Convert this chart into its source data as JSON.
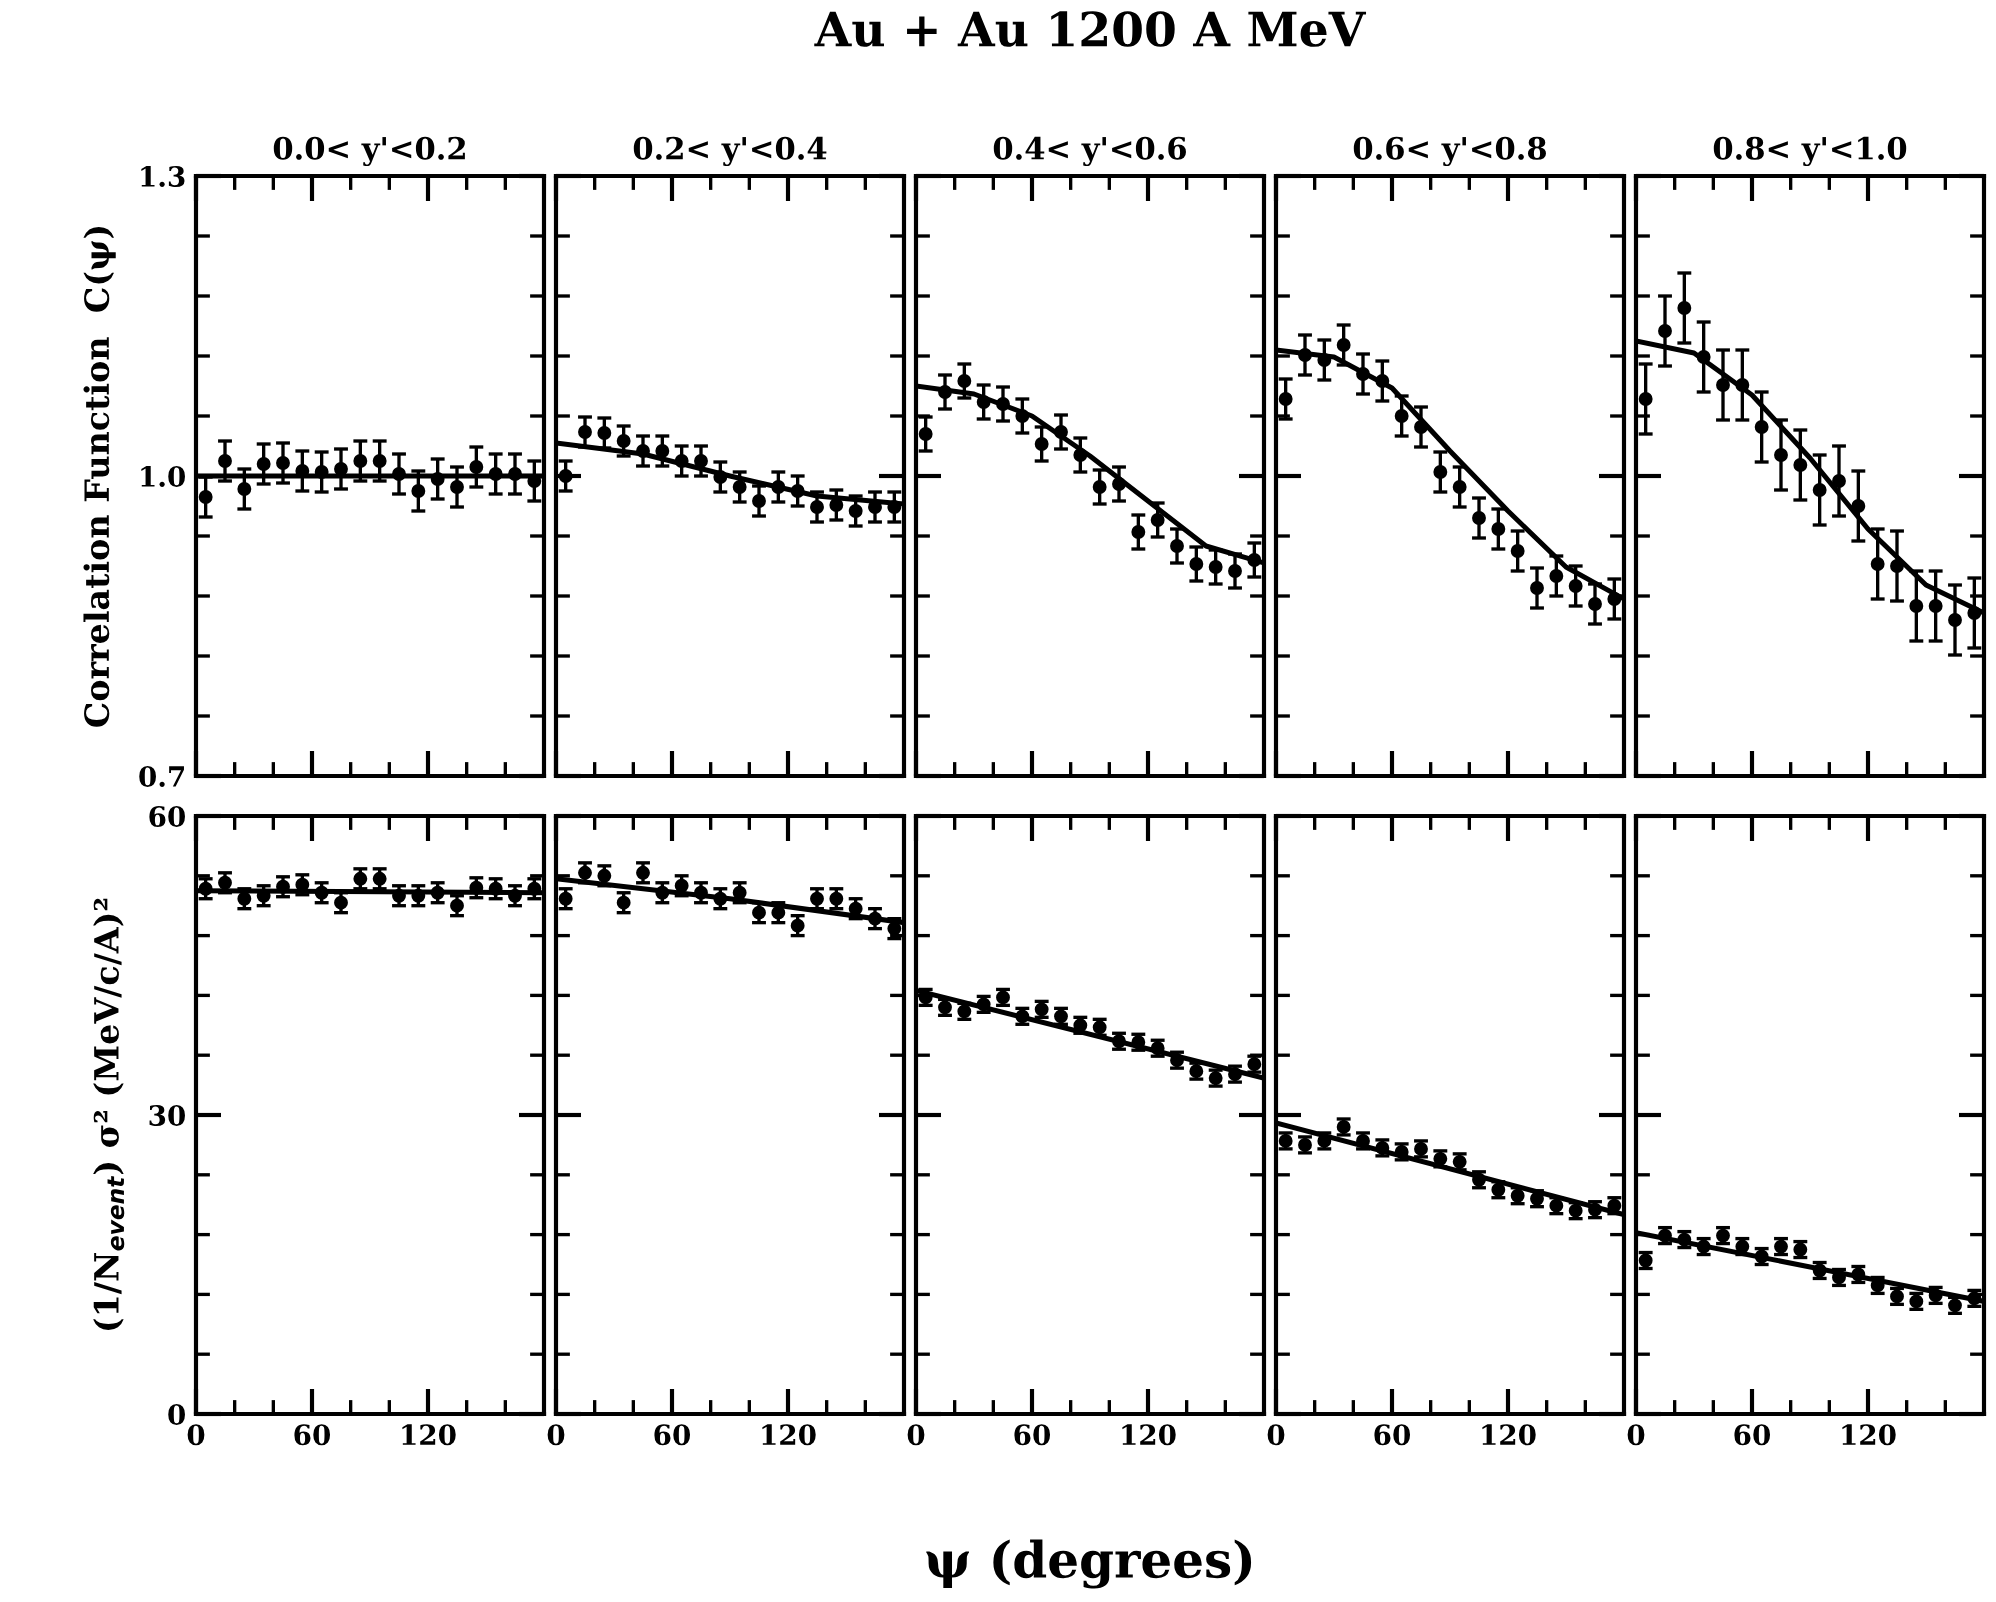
{
  "chart_data": [
    {
      "type": "scatter",
      "subtitle": "0.0< y'<0.2",
      "ylabel": "Correlation Function  C(ψ)",
      "marker": "circle",
      "tick_labels": "y",
      "x": [
        5,
        15,
        25,
        35,
        45,
        55,
        65,
        75,
        85,
        95,
        105,
        115,
        125,
        135,
        145,
        155,
        165,
        175
      ],
      "xlim": [
        0,
        180
      ],
      "xticks": [
        0,
        {
          "value": 20,
          "label": null
        },
        {
          "value": 40,
          "label": null
        },
        60,
        {
          "value": 80,
          "label": null
        },
        {
          "value": 100,
          "label": null
        },
        120,
        {
          "value": 140,
          "label": null
        },
        {
          "value": 160,
          "label": null
        },
        {
          "value": 180,
          "label": null
        }
      ],
      "ylim": [
        0.7,
        1.3
      ],
      "yticks": [
        0.7,
        {
          "value": 0.76,
          "label": null
        },
        {
          "value": 0.82,
          "label": null
        },
        {
          "value": 0.88,
          "label": null
        },
        {
          "value": 0.94,
          "label": null
        },
        {
          "value": 1.0,
          "label": "1.0"
        },
        {
          "value": 1.06,
          "label": null
        },
        {
          "value": 1.12,
          "label": null
        },
        {
          "value": 1.18,
          "label": null
        },
        {
          "value": 1.24,
          "label": null
        },
        1.3
      ],
      "series": [
        {
          "color": "#000000",
          "values": [
            0.979,
            1.015,
            0.987,
            1.012,
            1.013,
            1.005,
            1.004,
            1.007,
            1.015,
            1.015,
            1.002,
            0.985,
            0.997,
            0.989,
            1.009,
            1.002,
            1.002,
            0.995
          ],
          "errors": [
            0.02,
            0.02,
            0.02,
            0.02,
            0.02,
            0.02,
            0.02,
            0.02,
            0.02,
            0.02,
            0.02,
            0.02,
            0.02,
            0.02,
            0.02,
            0.02,
            0.02,
            0.02
          ]
        },
        {
          "type": "line",
          "color": "#000000",
          "x": [
            0,
            90,
            180
          ],
          "marker": "none",
          "values": [
            1.0,
            1.0,
            1.0
          ]
        }
      ]
    },
    {
      "type": "scatter",
      "subtitle": "0.2< y'<0.4",
      "marker": "circle",
      "tick_labels": false,
      "x": [
        5,
        15,
        25,
        35,
        45,
        55,
        65,
        75,
        85,
        95,
        105,
        115,
        125,
        135,
        145,
        155,
        165,
        175
      ],
      "xlim": [
        0,
        180
      ],
      "xticks": [
        0,
        {
          "value": 20,
          "label": null
        },
        {
          "value": 40,
          "label": null
        },
        60,
        {
          "value": 80,
          "label": null
        },
        {
          "value": 100,
          "label": null
        },
        120,
        {
          "value": 140,
          "label": null
        },
        {
          "value": 160,
          "label": null
        },
        {
          "value": 180,
          "label": null
        }
      ],
      "ylim": [
        0.7,
        1.3
      ],
      "yticks": [
        0.7,
        {
          "value": 0.76,
          "label": null
        },
        {
          "value": 0.82,
          "label": null
        },
        {
          "value": 0.88,
          "label": null
        },
        {
          "value": 0.94,
          "label": null
        },
        1.0,
        {
          "value": 1.06,
          "label": null
        },
        {
          "value": 1.12,
          "label": null
        },
        {
          "value": 1.18,
          "label": null
        },
        {
          "value": 1.24,
          "label": null
        },
        1.3
      ],
      "series": [
        {
          "color": "#000000",
          "values": [
            1.0,
            1.044,
            1.043,
            1.035,
            1.025,
            1.025,
            1.015,
            1.015,
            0.999,
            0.989,
            0.975,
            0.989,
            0.985,
            0.969,
            0.971,
            0.965,
            0.969,
            0.969
          ],
          "errors": [
            0.015,
            0.015,
            0.015,
            0.015,
            0.015,
            0.015,
            0.015,
            0.015,
            0.015,
            0.015,
            0.015,
            0.015,
            0.015,
            0.015,
            0.015,
            0.015,
            0.015,
            0.015
          ]
        },
        {
          "type": "line",
          "color": "#000000",
          "x": [
            0,
            45,
            90,
            135,
            180
          ],
          "marker": "none",
          "values": [
            1.033,
            1.022,
            1.0,
            0.98,
            0.972
          ]
        }
      ]
    },
    {
      "type": "scatter",
      "title": "Au + Au 1200 A MeV",
      "subtitle": "0.4< y'<0.6",
      "marker": "circle",
      "tick_labels": false,
      "x": [
        5,
        15,
        25,
        35,
        45,
        55,
        65,
        75,
        85,
        95,
        105,
        115,
        125,
        135,
        145,
        155,
        165,
        175
      ],
      "xlim": [
        0,
        180
      ],
      "xticks": [
        0,
        {
          "value": 20,
          "label": null
        },
        {
          "value": 40,
          "label": null
        },
        60,
        {
          "value": 80,
          "label": null
        },
        {
          "value": 100,
          "label": null
        },
        120,
        {
          "value": 140,
          "label": null
        },
        {
          "value": 160,
          "label": null
        },
        {
          "value": 180,
          "label": null
        }
      ],
      "ylim": [
        0.7,
        1.3
      ],
      "yticks": [
        0.7,
        {
          "value": 0.76,
          "label": null
        },
        {
          "value": 0.82,
          "label": null
        },
        {
          "value": 0.88,
          "label": null
        },
        {
          "value": 0.94,
          "label": null
        },
        1.0,
        {
          "value": 1.06,
          "label": null
        },
        {
          "value": 1.12,
          "label": null
        },
        {
          "value": 1.18,
          "label": null
        },
        {
          "value": 1.24,
          "label": null
        },
        1.3
      ],
      "series": [
        {
          "color": "#000000",
          "values": [
            1.042,
            1.084,
            1.095,
            1.074,
            1.072,
            1.06,
            1.032,
            1.044,
            1.021,
            0.989,
            0.992,
            0.944,
            0.956,
            0.93,
            0.912,
            0.909,
            0.905,
            0.916
          ],
          "errors": [
            0.017,
            0.017,
            0.017,
            0.017,
            0.017,
            0.017,
            0.017,
            0.017,
            0.017,
            0.017,
            0.017,
            0.017,
            0.017,
            0.017,
            0.017,
            0.017,
            0.017,
            0.017
          ]
        },
        {
          "type": "line",
          "color": "#000000",
          "x": [
            0,
            30,
            60,
            90,
            120,
            150,
            180
          ],
          "marker": "none",
          "values": [
            1.09,
            1.082,
            1.06,
            1.02,
            0.975,
            0.93,
            0.913
          ]
        }
      ]
    },
    {
      "type": "scatter",
      "subtitle": "0.6< y'<0.8",
      "marker": "circle",
      "tick_labels": false,
      "x": [
        5,
        15,
        25,
        35,
        45,
        55,
        65,
        75,
        85,
        95,
        105,
        115,
        125,
        135,
        145,
        155,
        165,
        175
      ],
      "xlim": [
        0,
        180
      ],
      "xticks": [
        0,
        {
          "value": 20,
          "label": null
        },
        {
          "value": 40,
          "label": null
        },
        60,
        {
          "value": 80,
          "label": null
        },
        {
          "value": 100,
          "label": null
        },
        120,
        {
          "value": 140,
          "label": null
        },
        {
          "value": 160,
          "label": null
        },
        {
          "value": 180,
          "label": null
        }
      ],
      "ylim": [
        0.7,
        1.3
      ],
      "yticks": [
        0.7,
        {
          "value": 0.76,
          "label": null
        },
        {
          "value": 0.82,
          "label": null
        },
        {
          "value": 0.88,
          "label": null
        },
        {
          "value": 0.94,
          "label": null
        },
        1.0,
        {
          "value": 1.06,
          "label": null
        },
        {
          "value": 1.12,
          "label": null
        },
        {
          "value": 1.18,
          "label": null
        },
        {
          "value": 1.24,
          "label": null
        },
        1.3
      ],
      "series": [
        {
          "color": "#000000",
          "values": [
            1.077,
            1.121,
            1.116,
            1.131,
            1.102,
            1.095,
            1.06,
            1.049,
            1.004,
            0.989,
            0.958,
            0.947,
            0.925,
            0.888,
            0.9,
            0.89,
            0.872,
            0.877
          ],
          "errors": [
            0.02,
            0.02,
            0.02,
            0.02,
            0.02,
            0.02,
            0.02,
            0.02,
            0.02,
            0.02,
            0.02,
            0.02,
            0.02,
            0.02,
            0.02,
            0.02,
            0.02,
            0.02
          ]
        },
        {
          "type": "line",
          "color": "#000000",
          "x": [
            0,
            30,
            60,
            90,
            120,
            150,
            180
          ],
          "marker": "none",
          "values": [
            1.126,
            1.119,
            1.088,
            1.025,
            0.965,
            0.909,
            0.877
          ]
        }
      ]
    },
    {
      "type": "scatter",
      "subtitle": "0.8< y'<1.0",
      "marker": "circle",
      "tick_labels": false,
      "x": [
        5,
        15,
        25,
        35,
        45,
        55,
        65,
        75,
        85,
        95,
        105,
        115,
        125,
        135,
        145,
        155,
        165,
        175
      ],
      "xlim": [
        0,
        180
      ],
      "xticks": [
        0,
        {
          "value": 20,
          "label": null
        },
        {
          "value": 40,
          "label": null
        },
        60,
        {
          "value": 80,
          "label": null
        },
        {
          "value": 100,
          "label": null
        },
        120,
        {
          "value": 140,
          "label": null
        },
        {
          "value": 160,
          "label": null
        },
        {
          "value": 180,
          "label": null
        }
      ],
      "ylim": [
        0.7,
        1.3
      ],
      "yticks": [
        0.7,
        {
          "value": 0.76,
          "label": null
        },
        {
          "value": 0.82,
          "label": null
        },
        {
          "value": 0.88,
          "label": null
        },
        {
          "value": 0.94,
          "label": null
        },
        1.0,
        {
          "value": 1.06,
          "label": null
        },
        {
          "value": 1.12,
          "label": null
        },
        {
          "value": 1.18,
          "label": null
        },
        {
          "value": 1.24,
          "label": null
        },
        1.3
      ],
      "series": [
        {
          "color": "#000000",
          "values": [
            1.077,
            1.145,
            1.168,
            1.119,
            1.091,
            1.091,
            1.049,
            1.021,
            1.011,
            0.986,
            0.995,
            0.97,
            0.912,
            0.91,
            0.87,
            0.87,
            0.856,
            0.863
          ],
          "errors": [
            0.035,
            0.035,
            0.035,
            0.035,
            0.035,
            0.035,
            0.035,
            0.035,
            0.035,
            0.035,
            0.035,
            0.035,
            0.035,
            0.035,
            0.035,
            0.035,
            0.035,
            0.035
          ]
        },
        {
          "type": "line",
          "color": "#000000",
          "x": [
            0,
            30,
            60,
            90,
            120,
            150,
            180
          ],
          "marker": "none",
          "values": [
            1.135,
            1.123,
            1.081,
            1.018,
            0.947,
            0.891,
            0.863
          ]
        }
      ]
    },
    {
      "type": "scatter",
      "ylabel": "(1/N$_{event}$) σ² (MeV/c/A)²",
      "marker": "circle",
      "x": [
        5,
        15,
        25,
        35,
        45,
        55,
        65,
        75,
        85,
        95,
        105,
        115,
        125,
        135,
        145,
        155,
        165,
        175
      ],
      "xlim": [
        0,
        180
      ],
      "xticks": [
        0,
        {
          "value": 20,
          "label": null
        },
        {
          "value": 40,
          "label": null
        },
        60,
        {
          "value": 80,
          "label": null
        },
        {
          "value": 100,
          "label": null
        },
        120,
        {
          "value": 140,
          "label": null
        },
        {
          "value": 160,
          "label": null
        },
        {
          "value": 180,
          "label": null
        }
      ],
      "ylim": [
        0,
        60
      ],
      "yticks": [
        0,
        {
          "value": 6,
          "label": null
        },
        {
          "value": 12,
          "label": null
        },
        {
          "value": 18,
          "label": null
        },
        {
          "value": 24,
          "label": null
        },
        30,
        {
          "value": 36,
          "label": null
        },
        {
          "value": 42,
          "label": null
        },
        {
          "value": 48,
          "label": null
        },
        {
          "value": 54,
          "label": null
        },
        60
      ],
      "series": [
        {
          "color": "#000000",
          "values": [
            52.7,
            53.3,
            51.7,
            52.0,
            52.9,
            53.1,
            52.3,
            51.3,
            53.7,
            53.7,
            52.0,
            52.0,
            52.3,
            51.0,
            52.8,
            52.7,
            52.0,
            52.7
          ],
          "errors": [
            1,
            1,
            1,
            1,
            1,
            1,
            1,
            1,
            1,
            1,
            1,
            1,
            1,
            1,
            1,
            1,
            1,
            1
          ]
        },
        {
          "type": "line",
          "color": "#000000",
          "x": [
            0,
            180
          ],
          "marker": "none",
          "values": [
            52.5,
            52.3
          ]
        }
      ]
    },
    {
      "type": "scatter",
      "marker": "circle",
      "tick_labels": "x",
      "x": [
        5,
        15,
        25,
        35,
        45,
        55,
        65,
        75,
        85,
        95,
        105,
        115,
        125,
        135,
        145,
        155,
        165,
        175
      ],
      "xlim": [
        0,
        180
      ],
      "xticks": [
        0,
        {
          "value": 20,
          "label": null
        },
        {
          "value": 40,
          "label": null
        },
        60,
        {
          "value": 80,
          "label": null
        },
        {
          "value": 100,
          "label": null
        },
        120,
        {
          "value": 140,
          "label": null
        },
        {
          "value": 160,
          "label": null
        },
        {
          "value": 180,
          "label": null
        }
      ],
      "ylim": [
        0,
        60
      ],
      "yticks": [
        0,
        {
          "value": 6,
          "label": null
        },
        {
          "value": 12,
          "label": null
        },
        {
          "value": 18,
          "label": null
        },
        {
          "value": 24,
          "label": null
        },
        30,
        {
          "value": 36,
          "label": null
        },
        {
          "value": 42,
          "label": null
        },
        {
          "value": 48,
          "label": null
        },
        {
          "value": 54,
          "label": null
        },
        60
      ],
      "series": [
        {
          "color": "#000000",
          "values": [
            51.7,
            54.3,
            54.0,
            51.3,
            54.3,
            52.3,
            53.0,
            52.3,
            51.7,
            52.3,
            50.3,
            50.3,
            49.0,
            51.7,
            51.7,
            50.7,
            49.7,
            48.7
          ],
          "errors": [
            1,
            1,
            1,
            1,
            1,
            1,
            1,
            1,
            1,
            1,
            1,
            1,
            1,
            1,
            1,
            1,
            1,
            1
          ]
        },
        {
          "type": "line",
          "color": "#000000",
          "x": [
            0,
            90,
            180
          ],
          "marker": "none",
          "values": [
            53.7,
            51.7,
            49.3
          ]
        }
      ]
    },
    {
      "type": "scatter",
      "xlabel": "ψ (degrees)",
      "marker": "circle",
      "tick_labels": "x",
      "x": [
        5,
        15,
        25,
        35,
        45,
        55,
        65,
        75,
        85,
        95,
        105,
        115,
        125,
        135,
        145,
        155,
        165,
        175
      ],
      "xlim": [
        0,
        180
      ],
      "xticks": [
        0,
        {
          "value": 20,
          "label": null
        },
        {
          "value": 40,
          "label": null
        },
        60,
        {
          "value": 80,
          "label": null
        },
        {
          "value": 100,
          "label": null
        },
        120,
        {
          "value": 140,
          "label": null
        },
        {
          "value": 160,
          "label": null
        },
        {
          "value": 180,
          "label": null
        }
      ],
      "ylim": [
        0,
        60
      ],
      "yticks": [
        0,
        {
          "value": 6,
          "label": null
        },
        {
          "value": 12,
          "label": null
        },
        {
          "value": 18,
          "label": null
        },
        {
          "value": 24,
          "label": null
        },
        30,
        {
          "value": 36,
          "label": null
        },
        {
          "value": 42,
          "label": null
        },
        {
          "value": 48,
          "label": null
        },
        {
          "value": 54,
          "label": null
        },
        60
      ],
      "series": [
        {
          "color": "#000000",
          "values": [
            41.8,
            40.8,
            40.4,
            41.1,
            41.8,
            39.9,
            40.6,
            39.9,
            39.0,
            38.8,
            37.4,
            37.3,
            36.7,
            35.5,
            34.4,
            33.7,
            34.1,
            35.1
          ],
          "errors": [
            0.8,
            0.8,
            0.8,
            0.8,
            0.8,
            0.8,
            0.8,
            0.8,
            0.8,
            0.8,
            0.8,
            0.8,
            0.8,
            0.8,
            0.8,
            0.8,
            0.8,
            0.8
          ]
        },
        {
          "type": "line",
          "color": "#000000",
          "x": [
            0,
            180
          ],
          "marker": "none",
          "values": [
            42.5,
            33.7
          ]
        }
      ]
    },
    {
      "type": "scatter",
      "marker": "circle",
      "tick_labels": "x",
      "x": [
        5,
        15,
        25,
        35,
        45,
        55,
        65,
        75,
        85,
        95,
        105,
        115,
        125,
        135,
        145,
        155,
        165,
        175
      ],
      "xlim": [
        0,
        180
      ],
      "xticks": [
        0,
        {
          "value": 20,
          "label": null
        },
        {
          "value": 40,
          "label": null
        },
        60,
        {
          "value": 80,
          "label": null
        },
        {
          "value": 100,
          "label": null
        },
        120,
        {
          "value": 140,
          "label": null
        },
        {
          "value": 160,
          "label": null
        },
        {
          "value": 180,
          "label": null
        }
      ],
      "ylim": [
        0,
        60
      ],
      "yticks": [
        0,
        {
          "value": 6,
          "label": null
        },
        {
          "value": 12,
          "label": null
        },
        {
          "value": 18,
          "label": null
        },
        {
          "value": 24,
          "label": null
        },
        30,
        {
          "value": 36,
          "label": null
        },
        {
          "value": 42,
          "label": null
        },
        {
          "value": 48,
          "label": null
        },
        {
          "value": 54,
          "label": null
        },
        60
      ],
      "series": [
        {
          "color": "#000000",
          "values": [
            27.4,
            27.0,
            27.4,
            28.8,
            27.4,
            26.7,
            26.3,
            26.6,
            25.6,
            25.3,
            23.5,
            22.5,
            21.9,
            21.6,
            20.9,
            20.4,
            20.5,
            20.9
          ],
          "errors": [
            0.8,
            0.8,
            0.8,
            0.8,
            0.8,
            0.8,
            0.8,
            0.8,
            0.8,
            0.8,
            0.8,
            0.8,
            0.8,
            0.8,
            0.8,
            0.8,
            0.8,
            0.8
          ]
        },
        {
          "type": "line",
          "color": "#000000",
          "x": [
            0,
            180
          ],
          "marker": "none",
          "values": [
            29.2,
            20.0
          ]
        }
      ]
    },
    {
      "type": "scatter",
      "marker": "circle",
      "tick_labels": "x",
      "x": [
        5,
        15,
        25,
        35,
        45,
        55,
        65,
        75,
        85,
        95,
        105,
        115,
        125,
        135,
        145,
        155,
        165,
        175
      ],
      "xlim": [
        0,
        180
      ],
      "xticks": [
        0,
        {
          "value": 20,
          "label": null
        },
        {
          "value": 40,
          "label": null
        },
        60,
        {
          "value": 80,
          "label": null
        },
        {
          "value": 100,
          "label": null
        },
        120,
        {
          "value": 140,
          "label": null
        },
        {
          "value": 160,
          "label": null
        }
      ],
      "ylim": [
        0,
        60
      ],
      "yticks": [
        0,
        {
          "value": 6,
          "label": null
        },
        {
          "value": 12,
          "label": null
        },
        {
          "value": 18,
          "label": null
        },
        {
          "value": 24,
          "label": null
        },
        30,
        {
          "value": 36,
          "label": null
        },
        {
          "value": 42,
          "label": null
        },
        {
          "value": 48,
          "label": null
        },
        {
          "value": 54,
          "label": null
        },
        60
      ],
      "series": [
        {
          "color": "#000000",
          "values": [
            15.4,
            17.9,
            17.5,
            16.8,
            17.9,
            16.8,
            15.8,
            16.8,
            16.5,
            14.4,
            13.7,
            14.0,
            12.9,
            11.8,
            11.3,
            11.9,
            10.9,
            11.6
          ],
          "errors": [
            0.8,
            0.8,
            0.8,
            0.8,
            0.8,
            0.8,
            0.8,
            0.8,
            0.8,
            0.8,
            0.8,
            0.8,
            0.8,
            0.8,
            0.8,
            0.8,
            0.8,
            0.8
          ]
        },
        {
          "type": "line",
          "color": "#000000",
          "x": [
            0,
            180
          ],
          "marker": "none",
          "values": [
            18.2,
            11.3
          ]
        }
      ]
    }
  ]
}
